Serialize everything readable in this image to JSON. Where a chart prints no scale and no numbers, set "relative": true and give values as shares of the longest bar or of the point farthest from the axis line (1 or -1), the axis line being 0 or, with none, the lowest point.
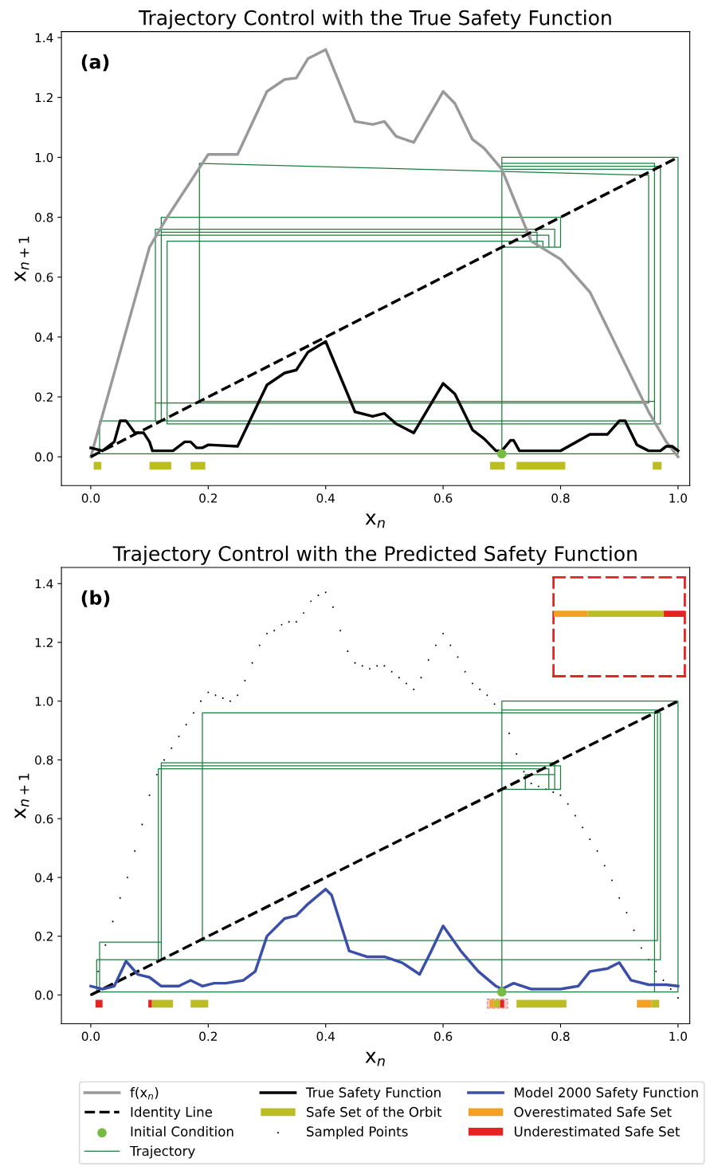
{
  "chart_data": [
    {
      "type": "line",
      "title": "Trajectory Control with the True Safety Function",
      "xlabel": "x$_{n}$",
      "ylabel": "x$_{n+1}$",
      "annotations": [
        "(a)"
      ],
      "legend": "bottom",
      "xlim": [
        -0.05,
        1.02
      ],
      "ylim": [
        -0.096,
        1.42
      ],
      "xticks": [
        {
          "value": 0,
          "label": "0.0"
        },
        {
          "value": 0.2,
          "label": "0.2"
        },
        {
          "value": 0.4,
          "label": "0.4"
        },
        {
          "value": 0.6,
          "label": "0.6"
        },
        {
          "value": 0.8,
          "label": "0.8"
        },
        {
          "value": 1,
          "label": "1.0"
        }
      ],
      "yticks": [
        {
          "value": 0,
          "label": "0.0"
        },
        {
          "value": 0.2,
          "label": "0.2"
        },
        {
          "value": 0.4,
          "label": "0.4"
        },
        {
          "value": 0.6,
          "label": "0.6"
        },
        {
          "value": 0.8,
          "label": "0.8"
        },
        {
          "value": 1,
          "label": "1.0"
        },
        {
          "value": 1.2,
          "label": "1.2"
        },
        {
          "value": 1.4,
          "label": "1.4"
        }
      ],
      "series": [
        {
          "name": "f(x$_{n}$)",
          "color": "#999999",
          "x": [
            0,
            0.1,
            0.13,
            0.18,
            0.2,
            0.25,
            0.3,
            0.33,
            0.35,
            0.37,
            0.4,
            0.45,
            0.48,
            0.5,
            0.52,
            0.55,
            0.6,
            0.62,
            0.65,
            0.67,
            0.7,
            0.75,
            0.8,
            0.85,
            0.9,
            0.95,
            0.98,
            1.0
          ],
          "values": [
            0,
            0.7,
            0.8,
            0.95,
            1.01,
            1.01,
            1.22,
            1.26,
            1.265,
            1.33,
            1.36,
            1.12,
            1.11,
            1.12,
            1.07,
            1.05,
            1.22,
            1.18,
            1.06,
            1.03,
            0.96,
            0.72,
            0.66,
            0.55,
            0.35,
            0.15,
            0.05,
            0
          ]
        },
        {
          "name": "Identity Line",
          "color": "#000000",
          "line_style": "dashed",
          "x": [
            0,
            1
          ],
          "values": [
            0,
            1
          ]
        },
        {
          "name": "Initial Condition",
          "type": "scatter",
          "color": "#77bb44",
          "marker": "circle",
          "x": [
            0.7
          ],
          "values": [
            0.01
          ]
        },
        {
          "name": "Trajectory",
          "color": "#1a7f3c",
          "x": [
            0.7,
            0.7,
            1.0,
            1.0,
            0.015,
            0.015,
            0.12,
            0.12,
            0.8,
            0.8,
            0.7,
            0.7,
            0.96,
            0.96,
            0.11,
            0.11,
            0.79,
            0.79,
            0.7,
            0.7,
            0.97,
            0.97,
            0.13,
            0.13,
            0.77,
            0.77,
            0.7,
            0.7,
            0.96,
            0.96,
            0.185,
            0.185,
            0.95,
            0.95,
            0.11,
            0.11,
            0.78,
            0.78,
            0.7,
            0.7,
            0.96,
            0.96,
            0.12,
            0.12,
            0.76,
            0.76,
            0.7
          ],
          "values": [
            0.01,
            1.0,
            1.0,
            0.01,
            0.01,
            0.12,
            0.12,
            0.8,
            0.8,
            0.7,
            0.7,
            0.96,
            0.96,
            0.12,
            0.12,
            0.76,
            0.76,
            0.7,
            0.7,
            0.97,
            0.97,
            0.11,
            0.11,
            0.72,
            0.72,
            0.7,
            0.7,
            0.98,
            0.98,
            0.185,
            0.185,
            0.98,
            0.94,
            0.18,
            0.18,
            0.74,
            0.74,
            0.7,
            0.7,
            0.96,
            0.96,
            0.12,
            0.12,
            0.75,
            0.75,
            0.7,
            0.7
          ]
        },
        {
          "name": "True Safety Function",
          "color": "#000000",
          "x": [
            0,
            0.02,
            0.04,
            0.05,
            0.06,
            0.075,
            0.09,
            0.1,
            0.105,
            0.14,
            0.16,
            0.17,
            0.18,
            0.19,
            0.2,
            0.25,
            0.3,
            0.33,
            0.35,
            0.37,
            0.4,
            0.45,
            0.48,
            0.5,
            0.52,
            0.55,
            0.6,
            0.62,
            0.65,
            0.67,
            0.69,
            0.7,
            0.715,
            0.72,
            0.73,
            0.8,
            0.85,
            0.88,
            0.9,
            0.91,
            0.93,
            0.95,
            0.97,
            0.98,
            0.99,
            1.0
          ],
          "values": [
            0.03,
            0.02,
            0.05,
            0.12,
            0.12,
            0.08,
            0.08,
            0.05,
            0.02,
            0.02,
            0.05,
            0.05,
            0.03,
            0.03,
            0.04,
            0.035,
            0.24,
            0.28,
            0.29,
            0.35,
            0.385,
            0.15,
            0.135,
            0.145,
            0.11,
            0.08,
            0.245,
            0.21,
            0.09,
            0.06,
            0.02,
            0.02,
            0.055,
            0.055,
            0.02,
            0.02,
            0.075,
            0.075,
            0.12,
            0.12,
            0.04,
            0.02,
            0.02,
            0.035,
            0.035,
            0.02
          ]
        },
        {
          "name": "Safe Set of the Orbit",
          "type": "step",
          "color": "#bcbd22",
          "x": [
            0.005,
            0.018
          ],
          "values": [
            -0.03,
            -0.03
          ]
        },
        {
          "type": "step",
          "color": "#bcbd22",
          "x": [
            0.1,
            0.137
          ],
          "values": [
            -0.03,
            -0.03
          ]
        },
        {
          "type": "step",
          "color": "#bcbd22",
          "x": [
            0.17,
            0.195
          ],
          "values": [
            -0.03,
            -0.03
          ]
        },
        {
          "type": "step",
          "color": "#bcbd22",
          "x": [
            0.68,
            0.705
          ],
          "values": [
            -0.03,
            -0.03
          ]
        },
        {
          "type": "step",
          "color": "#bcbd22",
          "x": [
            0.725,
            0.808
          ],
          "values": [
            -0.03,
            -0.03
          ]
        },
        {
          "type": "step",
          "color": "#bcbd22",
          "x": [
            0.957,
            0.972
          ],
          "values": [
            -0.03,
            -0.03
          ]
        }
      ]
    },
    {
      "type": "line",
      "title": "Trajectory Control with the Predicted Safety Function",
      "xlabel": "x$_{n}$",
      "ylabel": "x$_{n+1}$",
      "annotations": [
        "(b)"
      ],
      "legend": "bottom",
      "xlim": [
        -0.05,
        1.02
      ],
      "ylim": [
        -0.098,
        1.455
      ],
      "xticks": [
        {
          "value": 0,
          "label": "0.0"
        },
        {
          "value": 0.2,
          "label": "0.2"
        },
        {
          "value": 0.4,
          "label": "0.4"
        },
        {
          "value": 0.6,
          "label": "0.6"
        },
        {
          "value": 0.8,
          "label": "0.8"
        },
        {
          "value": 1,
          "label": "1.0"
        }
      ],
      "yticks": [
        {
          "value": 0,
          "label": "0.0"
        },
        {
          "value": 0.2,
          "label": "0.2"
        },
        {
          "value": 0.4,
          "label": "0.4"
        },
        {
          "value": 0.6,
          "label": "0.6"
        },
        {
          "value": 0.8,
          "label": "0.8"
        },
        {
          "value": 1,
          "label": "1.0"
        },
        {
          "value": 1.2,
          "label": "1.2"
        },
        {
          "value": 1.4,
          "label": "1.4"
        }
      ],
      "series": [
        {
          "name": "Identity Line",
          "color": "#000000",
          "line_style": "dashed",
          "x": [
            0,
            1
          ],
          "values": [
            0,
            1
          ]
        },
        {
          "name": "Sampled Points",
          "type": "scatter",
          "color": "#000000",
          "marker": "circle",
          "x": [
            0,
            0.0125,
            0.025,
            0.0375,
            0.05,
            0.0625,
            0.075,
            0.0875,
            0.1,
            0.1125,
            0.125,
            0.1375,
            0.15,
            0.1625,
            0.175,
            0.1875,
            0.2,
            0.2125,
            0.225,
            0.2375,
            0.25,
            0.2625,
            0.275,
            0.2875,
            0.3,
            0.3125,
            0.325,
            0.3375,
            0.35,
            0.3625,
            0.375,
            0.3875,
            0.4,
            0.4125,
            0.425,
            0.4375,
            0.45,
            0.4625,
            0.475,
            0.4875,
            0.5,
            0.5125,
            0.525,
            0.5375,
            0.55,
            0.5625,
            0.575,
            0.5875,
            0.6,
            0.6125,
            0.625,
            0.6375,
            0.65,
            0.6625,
            0.675,
            0.6875,
            0.7,
            0.7125,
            0.725,
            0.7375,
            0.75,
            0.7625,
            0.775,
            0.7875,
            0.8,
            0.8125,
            0.825,
            0.8375,
            0.85,
            0.8625,
            0.875,
            0.8875,
            0.9,
            0.9125,
            0.925,
            0.9375,
            0.95,
            0.9625,
            0.975,
            0.9875,
            1.0
          ],
          "values": [
            0.0,
            0.08,
            0.17,
            0.25,
            0.33,
            0.4,
            0.49,
            0.58,
            0.68,
            0.75,
            0.8,
            0.84,
            0.88,
            0.92,
            0.96,
            1.0,
            1.03,
            1.02,
            1.01,
            1.0,
            1.02,
            1.07,
            1.13,
            1.19,
            1.23,
            1.24,
            1.26,
            1.27,
            1.27,
            1.3,
            1.34,
            1.36,
            1.37,
            1.32,
            1.24,
            1.17,
            1.13,
            1.12,
            1.11,
            1.12,
            1.12,
            1.1,
            1.08,
            1.06,
            1.04,
            1.08,
            1.14,
            1.19,
            1.23,
            1.19,
            1.15,
            1.1,
            1.06,
            1.04,
            1.02,
            0.99,
            0.96,
            0.89,
            0.82,
            0.76,
            0.72,
            0.71,
            0.7,
            0.69,
            0.68,
            0.65,
            0.61,
            0.57,
            0.53,
            0.49,
            0.44,
            0.39,
            0.33,
            0.28,
            0.22,
            0.16,
            0.12,
            0.08,
            0.05,
            0.02,
            -0.01
          ]
        },
        {
          "name": "Initial Condition",
          "type": "scatter",
          "color": "#77bb44",
          "marker": "circle",
          "x": [
            0.7
          ],
          "values": [
            0.01
          ]
        },
        {
          "name": "Trajectory",
          "color": "#1a7f3c",
          "x": [
            0.7,
            0.7,
            1.0,
            1.0,
            0.015,
            0.015,
            0.12,
            0.12,
            0.79,
            0.79,
            0.7,
            0.7,
            0.96,
            0.96,
            0.12,
            0.12,
            0.79,
            0.79,
            0.74,
            0.74,
            0.7,
            0.7,
            0.965,
            0.965,
            0.19,
            0.19,
            0.7,
            0.7,
            0.96,
            0.96,
            0.01,
            0.01,
            0.115,
            0.115,
            0.78,
            0.78,
            0.7,
            0.7,
            0.97,
            0.97,
            0.12,
            0.12,
            0.8,
            0.8,
            0.7
          ],
          "values": [
            0.01,
            1.0,
            1.0,
            0.01,
            0.01,
            0.18,
            0.18,
            0.79,
            0.79,
            0.7,
            0.7,
            0.96,
            0.96,
            0.12,
            0.12,
            0.78,
            0.78,
            0.75,
            0.75,
            0.7,
            0.7,
            0.97,
            0.97,
            0.185,
            0.185,
            0.96,
            0.96,
            0.96,
            0.96,
            0.01,
            0.01,
            0.12,
            0.12,
            0.77,
            0.77,
            0.7,
            0.7,
            0.96,
            0.96,
            0.12,
            0.12,
            0.78,
            0.78,
            0.7,
            0.7
          ]
        },
        {
          "name": "Model 2000 Safety Function",
          "color": "#3b4ea8",
          "x": [
            0,
            0.02,
            0.04,
            0.06,
            0.08,
            0.1,
            0.12,
            0.15,
            0.17,
            0.19,
            0.21,
            0.23,
            0.26,
            0.28,
            0.3,
            0.33,
            0.35,
            0.37,
            0.4,
            0.41,
            0.44,
            0.47,
            0.5,
            0.53,
            0.56,
            0.58,
            0.6,
            0.63,
            0.66,
            0.69,
            0.7,
            0.72,
            0.75,
            0.8,
            0.83,
            0.85,
            0.88,
            0.9,
            0.92,
            0.95,
            0.98,
            1.0
          ],
          "values": [
            0.03,
            0.02,
            0.03,
            0.115,
            0.07,
            0.06,
            0.03,
            0.03,
            0.05,
            0.03,
            0.04,
            0.04,
            0.05,
            0.08,
            0.2,
            0.26,
            0.27,
            0.31,
            0.36,
            0.34,
            0.15,
            0.13,
            0.13,
            0.11,
            0.07,
            0.15,
            0.235,
            0.15,
            0.08,
            0.03,
            0.02,
            0.04,
            0.02,
            0.02,
            0.03,
            0.08,
            0.09,
            0.11,
            0.05,
            0.035,
            0.035,
            0.03
          ]
        },
        {
          "name": "Safe Set of the Orbit",
          "type": "step",
          "color": "#bcbd22",
          "x": [
            0.104,
            0.14
          ],
          "values": [
            -0.03,
            -0.03
          ]
        },
        {
          "type": "step",
          "color": "#bcbd22",
          "x": [
            0.17,
            0.2
          ],
          "values": [
            -0.03,
            -0.03
          ]
        },
        {
          "type": "step",
          "color": "#bcbd22",
          "x": [
            0.686,
            0.697
          ],
          "values": [
            -0.03,
            -0.03
          ]
        },
        {
          "type": "step",
          "color": "#bcbd22",
          "x": [
            0.725,
            0.81
          ],
          "values": [
            -0.03,
            -0.03
          ]
        },
        {
          "type": "step",
          "color": "#bcbd22",
          "x": [
            0.955,
            0.968
          ],
          "values": [
            -0.03,
            -0.03
          ]
        },
        {
          "name": "Overestimated Safe Set",
          "type": "step",
          "color": "#f5a020",
          "x": [
            0.679,
            0.686
          ],
          "values": [
            -0.03,
            -0.03
          ]
        },
        {
          "type": "step",
          "color": "#f5a020",
          "x": [
            0.93,
            0.955
          ],
          "values": [
            -0.03,
            -0.03
          ]
        },
        {
          "name": "Underestimated Safe Set",
          "type": "step",
          "color": "#e62222",
          "x": [
            0.008,
            0.02
          ],
          "values": [
            -0.03,
            -0.03
          ]
        },
        {
          "type": "step",
          "color": "#e62222",
          "x": [
            0.098,
            0.104
          ],
          "values": [
            -0.03,
            -0.03
          ]
        },
        {
          "type": "step",
          "color": "#e62222",
          "x": [
            0.697,
            0.704
          ],
          "values": [
            -0.03,
            -0.03
          ]
        }
      ]
    },
    {
      "type": "bar",
      "orientation": "horizontal",
      "stacked": true,
      "relative": true,
      "categories": [
        null
      ],
      "series": [
        {
          "color": "#f5a020",
          "values": [
            0.26
          ]
        },
        {
          "color": "#bcbd22",
          "values": [
            0.58
          ]
        },
        {
          "color": "#e62222",
          "values": [
            0.16
          ]
        }
      ]
    }
  ]
}
